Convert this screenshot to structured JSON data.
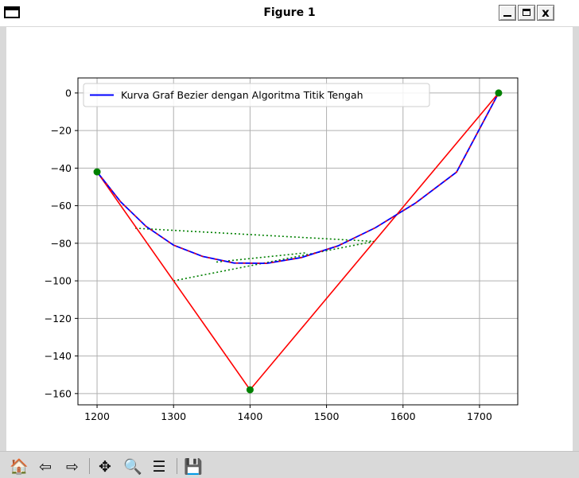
{
  "window": {
    "title": "Figure 1",
    "minimize_label": "_",
    "maximize_label": "□",
    "close_label": "x"
  },
  "toolbar": {
    "items": [
      {
        "name": "home-icon",
        "glyph": "🏠"
      },
      {
        "name": "back-icon",
        "glyph": "⇦"
      },
      {
        "name": "forward-icon",
        "glyph": "⇨"
      },
      {
        "name": "pan-icon",
        "glyph": "✥"
      },
      {
        "name": "zoom-icon",
        "glyph": "🔍"
      },
      {
        "name": "configure-subplots-icon",
        "glyph": "☰"
      },
      {
        "name": "save-icon",
        "glyph": "💾"
      }
    ]
  },
  "chart_data": {
    "type": "line",
    "title": "",
    "xlabel": "",
    "ylabel": "",
    "xlim": [
      1175,
      1750
    ],
    "ylim": [
      -166,
      8
    ],
    "x_ticks": [
      1200,
      1300,
      1400,
      1500,
      1600,
      1700
    ],
    "y_ticks": [
      0,
      -20,
      -40,
      -60,
      -80,
      -100,
      -120,
      -140,
      -160
    ],
    "x_tick_labels": [
      "1200",
      "1300",
      "1400",
      "1500",
      "1600",
      "1700"
    ],
    "y_tick_labels": [
      "0",
      "−20",
      "−40",
      "−60",
      "−80",
      "−100",
      "−120",
      "−140",
      "−160"
    ],
    "grid": true,
    "legend": {
      "location": "upper left",
      "entries": [
        "Kurva Graf Bezier dengan Algoritma Titik Tengah"
      ]
    },
    "control_points": {
      "x": [
        1200,
        1400,
        1725
      ],
      "y": [
        -42,
        -158,
        0
      ],
      "color": "#008000"
    },
    "control_polygon": {
      "x": [
        1200,
        1400,
        1725
      ],
      "y": [
        -42,
        -158,
        0
      ],
      "color": "#ff0000"
    },
    "construction_lines": [
      {
        "x": [
          1250,
          1562
        ],
        "y": [
          -72,
          -79
        ],
        "color": "#008000",
        "style": "dotted"
      },
      {
        "x": [
          1300,
          1562
        ],
        "y": [
          -100,
          -79
        ],
        "color": "#008000",
        "style": "dotted"
      },
      {
        "x": [
          1356,
          1475
        ],
        "y": [
          -90,
          -85
        ],
        "color": "#008000",
        "style": "dotted"
      }
    ],
    "series": [
      {
        "name": "Kurva Graf Bezier dengan Algoritma Titik Tengah",
        "color": "#0000ff",
        "x": [
          1200,
          1231,
          1264,
          1300,
          1338,
          1379,
          1422,
          1467,
          1515,
          1564,
          1616,
          1670,
          1725
        ],
        "y": [
          -42,
          -58,
          -71,
          -81,
          -87,
          -90.5,
          -90.7,
          -87.6,
          -81.4,
          -71.7,
          -58.7,
          -42.1,
          0
        ]
      }
    ]
  }
}
